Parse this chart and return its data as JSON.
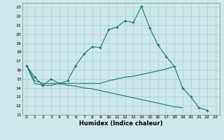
{
  "xlabel": "Humidex (Indice chaleur)",
  "background_color": "#cce8e8",
  "grid_color": "#aacfcf",
  "line_color": "#1a7a6e",
  "xlim": [
    -0.5,
    23.5
  ],
  "ylim": [
    11,
    23.5
  ],
  "yticks": [
    11,
    12,
    13,
    14,
    15,
    16,
    17,
    18,
    19,
    20,
    21,
    22,
    23
  ],
  "xticks": [
    0,
    1,
    2,
    3,
    4,
    5,
    6,
    7,
    8,
    9,
    10,
    11,
    12,
    13,
    14,
    15,
    16,
    17,
    18,
    19,
    20,
    21,
    22,
    23
  ],
  "line1_x": [
    0,
    1,
    2,
    3,
    4,
    5,
    6,
    7,
    8,
    9,
    10,
    11,
    12,
    13,
    14,
    15,
    16,
    17,
    18,
    19,
    20,
    21,
    22
  ],
  "line1_y": [
    16.5,
    15.2,
    14.3,
    15.0,
    14.5,
    14.8,
    16.5,
    17.8,
    18.6,
    18.5,
    20.5,
    20.8,
    21.5,
    21.3,
    23.1,
    20.7,
    18.8,
    17.5,
    16.4,
    14.0,
    13.0,
    11.8,
    11.5
  ],
  "line2_x": [
    0,
    1,
    2,
    3,
    4,
    5,
    6,
    7,
    8,
    9,
    10,
    11,
    12,
    13,
    14,
    15,
    16,
    17,
    18
  ],
  "line2_y": [
    16.5,
    14.5,
    14.3,
    14.3,
    14.5,
    14.5,
    14.5,
    14.5,
    14.5,
    14.5,
    14.8,
    15.0,
    15.2,
    15.3,
    15.5,
    15.7,
    15.9,
    16.1,
    16.4
  ],
  "line3_x": [
    0,
    1,
    2,
    3,
    4,
    5,
    6,
    7,
    8,
    9,
    10,
    11,
    12,
    13,
    14,
    15,
    16,
    17,
    18,
    19
  ],
  "line3_y": [
    16.5,
    14.8,
    14.5,
    14.5,
    14.5,
    14.3,
    14.2,
    14.0,
    13.9,
    13.7,
    13.5,
    13.3,
    13.1,
    12.9,
    12.7,
    12.5,
    12.3,
    12.1,
    11.9,
    11.8
  ]
}
